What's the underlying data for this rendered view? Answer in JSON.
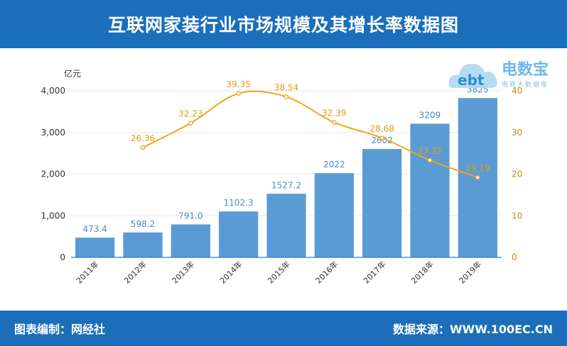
{
  "header": {
    "title": "互联网家装行业市场规模及其增长率数据图"
  },
  "footer": {
    "left": "图表编制：网经社",
    "right": "数据来源：WWW.100EC.CN"
  },
  "logo": {
    "mark": "ebt",
    "brand": "电数宝",
    "subtitle": "电商大数据库"
  },
  "colors": {
    "bar": "#5b9bd5",
    "line": "#f2a51a",
    "header": "#1b6fba",
    "bar_label": "#4a8cc9",
    "line_label": "#e59a10"
  },
  "chart_data": {
    "type": "bar",
    "title": "互联网家装行业市场规模及其增长率数据图",
    "ylabel": "亿元",
    "categories": [
      "2011年",
      "2012年",
      "2013年",
      "2014年",
      "2015年",
      "2016年",
      "2017年",
      "2018年",
      "2019年"
    ],
    "bar_values": [
      473.4,
      598.2,
      791.0,
      1102.3,
      1527.2,
      2022,
      2602,
      3209,
      3825
    ],
    "bar_labels": [
      "473.4",
      "598.2",
      "791.0",
      "1102.3",
      "1527.2",
      "2022",
      "2602",
      "3209",
      "3825"
    ],
    "line_values": [
      null,
      26.36,
      32.23,
      39.35,
      38.54,
      32.39,
      28.68,
      23.32,
      19.19
    ],
    "line_labels": [
      "",
      "26.36",
      "32.23",
      "39.35",
      "38.54",
      "32.39",
      "28.68",
      "23.32",
      "19.19"
    ],
    "ylim_left": [
      0,
      4000
    ],
    "yticks_left": [
      "0",
      "1,000",
      "2,000",
      "3,000",
      "4,000"
    ],
    "ylim_right": [
      0,
      40
    ],
    "yticks_right": [
      "0",
      "10",
      "20",
      "30",
      "40"
    ],
    "grid": true
  }
}
